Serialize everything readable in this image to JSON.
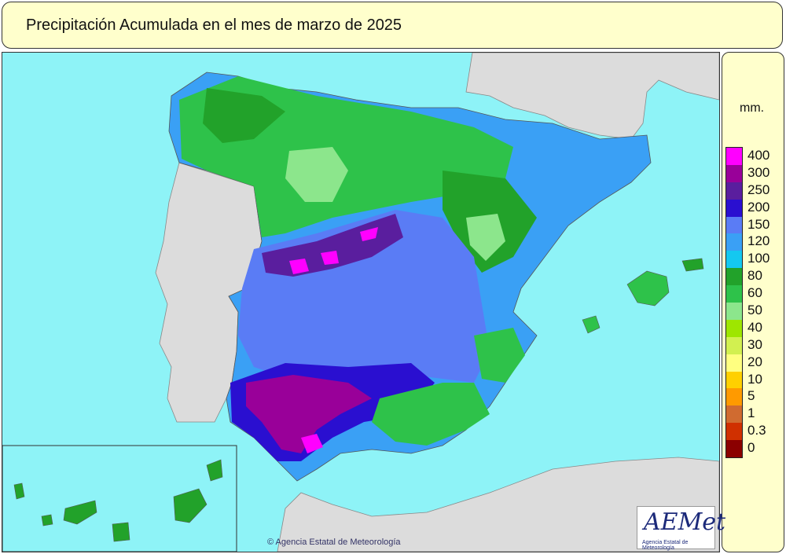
{
  "title": "Precipitación Acumulada en el mes de marzo de 2025",
  "legend": {
    "unit": "mm.",
    "entries": [
      {
        "label": "400",
        "color": "#ff00ff"
      },
      {
        "label": "300",
        "color": "#990099"
      },
      {
        "label": "250",
        "color": "#5a1e9e"
      },
      {
        "label": "200",
        "color": "#2a0fd0"
      },
      {
        "label": "150",
        "color": "#5a7cf5"
      },
      {
        "label": "120",
        "color": "#3aa0f5"
      },
      {
        "label": "100",
        "color": "#14c8f0"
      },
      {
        "label": "80",
        "color": "#22a22a"
      },
      {
        "label": "60",
        "color": "#2ec24a"
      },
      {
        "label": "50",
        "color": "#8ce68c"
      },
      {
        "label": "40",
        "color": "#9ee600"
      },
      {
        "label": "30",
        "color": "#d2f050"
      },
      {
        "label": "20",
        "color": "#ffff80"
      },
      {
        "label": "10",
        "color": "#ffd000"
      },
      {
        "label": "5",
        "color": "#ff9a00"
      },
      {
        "label": "1",
        "color": "#d06b30"
      },
      {
        "label": "0.3",
        "color": "#d03000"
      },
      {
        "label": "0",
        "color": "#8b0000"
      }
    ]
  },
  "credit": "© Agencia Estatal de Meteorología",
  "logo": {
    "name": "AEMet",
    "subtitle": "Agencia Estatal de Meteorología"
  },
  "colors": {
    "sea": "#8ef3f7",
    "land_outside": "#dcdcdc"
  }
}
